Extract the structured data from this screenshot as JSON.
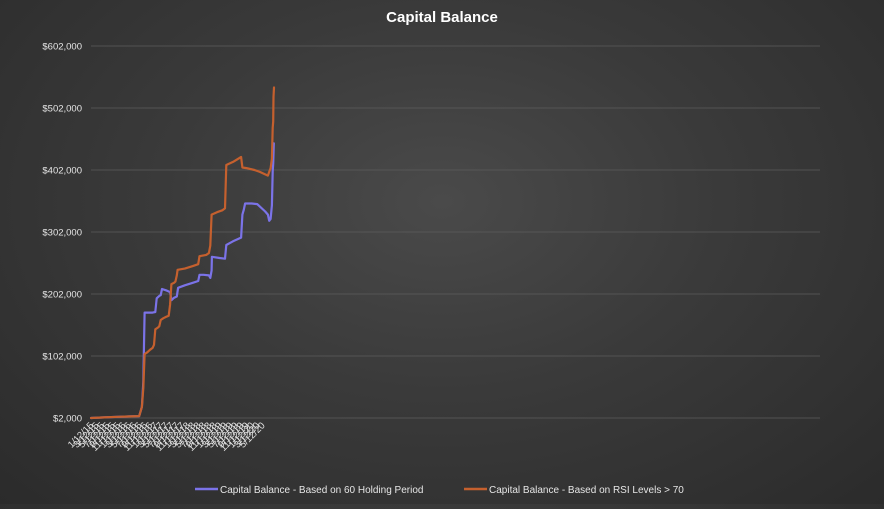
{
  "chart_data": {
    "type": "line",
    "title": "Capital Balance",
    "xlabel": "",
    "ylabel": "",
    "ylim": [
      2000,
      602000
    ],
    "y_ticks": [
      2000,
      102000,
      202000,
      302000,
      402000,
      502000,
      602000
    ],
    "y_tick_labels": [
      "$2,000",
      "$102,000",
      "$202,000",
      "$302,000",
      "$402,000",
      "$502,000",
      "$602,000"
    ],
    "x_tick_labels": [
      "1/12/15",
      "3/12/15",
      "5/12/15",
      "7/12/15",
      "9/12/15",
      "11/12/15",
      "1/12/16",
      "3/12/16",
      "5/12/16",
      "7/12/16",
      "9/12/16",
      "11/12/16",
      "1/12/17",
      "3/12/17",
      "5/12/17",
      "7/12/17",
      "9/12/17",
      "11/12/17",
      "1/12/18",
      "3/12/18",
      "5/12/18",
      "7/12/18",
      "9/12/18",
      "11/12/18",
      "1/12/19",
      "3/12/19",
      "5/12/19",
      "7/12/19",
      "9/12/19",
      "11/12/19",
      "1/12/20",
      "3/12/20",
      "5/12/20"
    ],
    "x_unit": "months since 1/12/15",
    "grid": true,
    "legend_position": "bottom",
    "series": [
      {
        "name": "Capital Balance - Based on 60 Holding Period",
        "color": "#7b73e8",
        "points": [
          [
            0,
            2000
          ],
          [
            5,
            3000
          ],
          [
            10,
            4000
          ],
          [
            15,
            4500
          ],
          [
            18,
            5000
          ],
          [
            19,
            20000
          ],
          [
            19.5,
            60000
          ],
          [
            20,
            172000
          ],
          [
            21.5,
            172000
          ],
          [
            23,
            172000
          ],
          [
            24,
            173000
          ],
          [
            24.5,
            195000
          ],
          [
            25.5,
            199000
          ],
          [
            26,
            200000
          ],
          [
            26.5,
            210000
          ],
          [
            28,
            208000
          ],
          [
            29.5,
            205000
          ],
          [
            30,
            192000
          ],
          [
            31,
            196000
          ],
          [
            32,
            198000
          ],
          [
            32.5,
            212000
          ],
          [
            35,
            216000
          ],
          [
            38,
            220000
          ],
          [
            40,
            223000
          ],
          [
            40.5,
            233000
          ],
          [
            42,
            233000
          ],
          [
            44,
            232000
          ],
          [
            44.5,
            228000
          ],
          [
            45,
            240000
          ],
          [
            45.1,
            262000
          ],
          [
            48,
            260000
          ],
          [
            50,
            259000
          ],
          [
            50.5,
            281000
          ],
          [
            53,
            287000
          ],
          [
            56,
            293000
          ],
          [
            56.5,
            330000
          ],
          [
            57,
            338000
          ],
          [
            57.5,
            348000
          ],
          [
            60,
            348000
          ],
          [
            62,
            347000
          ],
          [
            65,
            335000
          ],
          [
            66,
            330000
          ],
          [
            66.5,
            320000
          ],
          [
            67,
            323000
          ],
          [
            67.5,
            345000
          ],
          [
            67.8,
            400000
          ],
          [
            68,
            412000
          ],
          [
            68.2,
            445000
          ]
        ]
      },
      {
        "name": "Capital Balance - Based on RSI Levels > 70",
        "color": "#c5602e",
        "points": [
          [
            0,
            2000
          ],
          [
            5,
            3000
          ],
          [
            10,
            4000
          ],
          [
            15,
            4500
          ],
          [
            18,
            5000
          ],
          [
            19,
            20000
          ],
          [
            19.5,
            50000
          ],
          [
            20,
            105000
          ],
          [
            21,
            108000
          ],
          [
            22,
            112000
          ],
          [
            23,
            115000
          ],
          [
            23.5,
            120000
          ],
          [
            24,
            145000
          ],
          [
            25,
            148000
          ],
          [
            25.5,
            150000
          ],
          [
            26,
            160000
          ],
          [
            27,
            163000
          ],
          [
            28,
            165000
          ],
          [
            29,
            167000
          ],
          [
            29.5,
            185000
          ],
          [
            30,
            218000
          ],
          [
            31,
            220000
          ],
          [
            31.5,
            222000
          ],
          [
            32,
            232000
          ],
          [
            32.3,
            241000
          ],
          [
            35,
            243000
          ],
          [
            38,
            247000
          ],
          [
            40,
            250000
          ],
          [
            40.5,
            263000
          ],
          [
            43,
            265000
          ],
          [
            44,
            268000
          ],
          [
            44.5,
            280000
          ],
          [
            45,
            330000
          ],
          [
            47,
            334000
          ],
          [
            49,
            337000
          ],
          [
            50,
            340000
          ],
          [
            50.5,
            410000
          ],
          [
            53,
            415000
          ],
          [
            56,
            423000
          ],
          [
            56.5,
            406000
          ],
          [
            58,
            405000
          ],
          [
            61,
            402000
          ],
          [
            63,
            399000
          ],
          [
            66,
            393000
          ],
          [
            66.5,
            399000
          ],
          [
            67,
            405000
          ],
          [
            67.5,
            420000
          ],
          [
            67.8,
            470000
          ],
          [
            68,
            480000
          ],
          [
            68.1,
            520000
          ],
          [
            68.3,
            535000
          ]
        ]
      }
    ]
  }
}
